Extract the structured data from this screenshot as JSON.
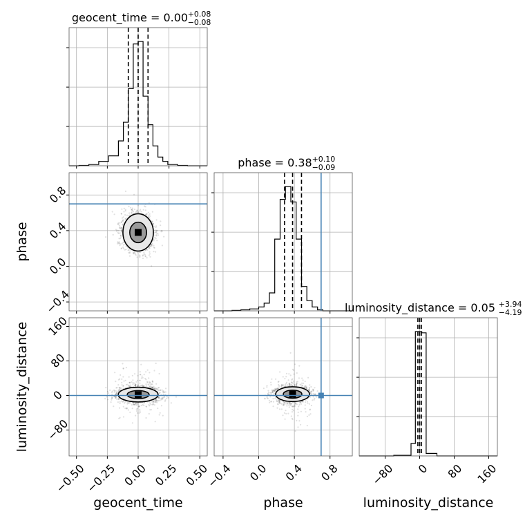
{
  "chart_data": {
    "type": "corner",
    "parameters": [
      {
        "name": "geocent_time",
        "axis_label": "geocent_time",
        "range": [
          -0.56,
          0.56
        ],
        "ticks": [
          -0.5,
          -0.25,
          0.0,
          0.25,
          0.5
        ],
        "tick_labels": [
          "−0.50",
          "−0.25",
          "0.00",
          "0.25",
          "0.50"
        ],
        "title_main": "geocent_time = 0.00",
        "title_plus": "+0.08",
        "title_minus": "−0.08",
        "quantiles": [
          -0.08,
          0.0,
          0.08
        ],
        "histogram": {
          "bin_edges": [
            -0.56,
            -0.48,
            -0.4,
            -0.32,
            -0.24,
            -0.16,
            -0.12,
            -0.08,
            -0.04,
            0.0,
            0.04,
            0.08,
            0.12,
            0.16,
            0.2,
            0.24,
            0.32,
            0.4,
            0.48,
            0.56
          ],
          "heights": [
            0.0,
            0.003,
            0.01,
            0.035,
            0.08,
            0.2,
            0.35,
            0.62,
            0.98,
            1.0,
            0.56,
            0.33,
            0.16,
            0.07,
            0.035,
            0.01,
            0.003,
            0.0,
            0.0
          ]
        },
        "truth": null
      },
      {
        "name": "phase",
        "axis_label": "phase",
        "range": [
          -0.5,
          1.05
        ],
        "ticks": [
          -0.4,
          0.0,
          0.4,
          0.8
        ],
        "tick_labels": [
          "−0.4",
          "0.0",
          "0.4",
          "0.8"
        ],
        "title_main": "phase = 0.38",
        "title_plus": "+0.10",
        "title_minus": "−0.09",
        "quantiles": [
          0.29,
          0.38,
          0.48
        ],
        "histogram": {
          "bin_edges": [
            -0.5,
            -0.4,
            -0.3,
            -0.2,
            -0.1,
            0.0,
            0.06,
            0.12,
            0.18,
            0.24,
            0.3,
            0.36,
            0.42,
            0.48,
            0.54,
            0.6,
            0.66,
            0.72,
            0.8,
            0.9,
            1.05
          ],
          "heights": [
            0.0,
            0.0,
            0.003,
            0.008,
            0.015,
            0.03,
            0.06,
            0.14,
            0.56,
            0.87,
            0.97,
            0.85,
            0.56,
            0.19,
            0.08,
            0.03,
            0.008,
            0.0,
            0.0,
            0.0
          ],
          "fill_color": "#000000"
        },
        "truth": 0.7
      },
      {
        "name": "luminosity_distance",
        "axis_label": "luminosity_distance",
        "range": [
          -140,
          180
        ],
        "ticks": [
          -80,
          0,
          80,
          160
        ],
        "tick_labels": [
          "−80",
          "0",
          "80",
          "160"
        ],
        "title_main": "luminosity_distance = 0.05",
        "title_plus": "+3.94",
        "title_minus": "−4.19",
        "quantiles": [
          -4.14,
          0.05,
          3.99
        ],
        "histogram": {
          "bin_edges": [
            -140,
            -60,
            -20,
            -10,
            -2,
            5,
            15,
            40,
            100,
            180
          ],
          "heights": [
            0.0,
            0.005,
            0.1,
            1.0,
            1.0,
            0.99,
            0.02,
            0.0,
            0.0
          ]
        },
        "truth": null
      }
    ],
    "truth_color": "#4682b4",
    "contour_levels": [
      0.393,
      0.865
    ],
    "grid": true,
    "density_centers": {
      "geocent_time_vs_phase": [
        0.0,
        0.38
      ],
      "geocent_time_vs_luminosity_distance": [
        0.0,
        2.0
      ],
      "phase_vs_luminosity_distance": [
        0.38,
        3.0
      ]
    }
  }
}
